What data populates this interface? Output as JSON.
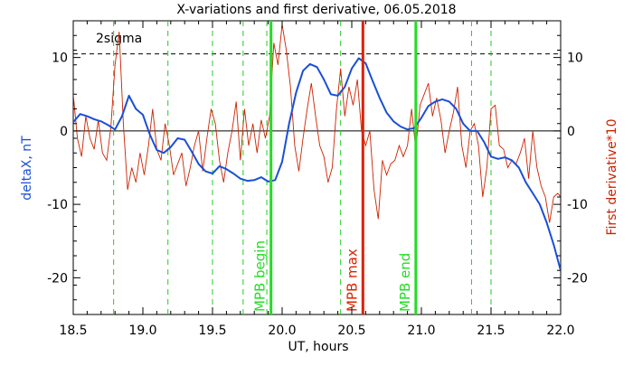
{
  "chart_data": {
    "type": "line",
    "title": "X-variations and first derivative, 06.05.2018",
    "xlabel": "UT, hours",
    "ylabel_left": "deltaX, nT",
    "ylabel_right": "First derivative*10",
    "xlim": [
      18.5,
      22.0
    ],
    "ylim": [
      -25,
      15
    ],
    "x_ticks": [
      18.5,
      19.0,
      19.5,
      20.0,
      20.5,
      21.0,
      21.5,
      22.0
    ],
    "x_tick_labels": [
      "18.5",
      "19.0",
      "19.5",
      "20.0",
      "20.5",
      "21.0",
      "21.5",
      "22.0"
    ],
    "y_ticks": [
      -20,
      -10,
      0,
      10
    ],
    "y_tick_labels": [
      "-20",
      "-10",
      "0",
      "10"
    ],
    "grid": false,
    "colors": {
      "deltaX": "#1a4fd6",
      "derivative": "#cc2200",
      "mpb_marker": "#22dd22",
      "max_marker": "#dd2200",
      "dashed_markers": "#22cc22",
      "sigma_line": "#000000",
      "zero_line": "#000000"
    },
    "sigma": {
      "label": "2sigma",
      "value": 10.5
    },
    "zero_line": 0,
    "dashed_markers_x": [
      18.79,
      19.18,
      19.5,
      19.72,
      19.89,
      20.42,
      21.36,
      21.5
    ],
    "markers": [
      {
        "label": "MPB begin",
        "x": 19.92,
        "kind": "mpb"
      },
      {
        "label": "MPB max",
        "x": 20.58,
        "kind": "max"
      },
      {
        "label": "MPB end",
        "x": 20.96,
        "kind": "mpb"
      }
    ],
    "series": [
      {
        "name": "deltaX",
        "axis": "left",
        "x": [
          18.5,
          18.55,
          18.6,
          18.65,
          18.7,
          18.75,
          18.8,
          18.85,
          18.9,
          18.95,
          19.0,
          19.05,
          19.1,
          19.15,
          19.2,
          19.25,
          19.3,
          19.35,
          19.4,
          19.45,
          19.5,
          19.55,
          19.6,
          19.65,
          19.7,
          19.75,
          19.8,
          19.85,
          19.9,
          19.95,
          20.0,
          20.05,
          20.1,
          20.15,
          20.2,
          20.25,
          20.3,
          20.35,
          20.4,
          20.45,
          20.5,
          20.55,
          20.6,
          20.65,
          20.7,
          20.75,
          20.8,
          20.85,
          20.9,
          20.95,
          21.0,
          21.05,
          21.1,
          21.15,
          21.2,
          21.25,
          21.3,
          21.35,
          21.4,
          21.45,
          21.5,
          21.55,
          21.6,
          21.65,
          21.7,
          21.75,
          21.8,
          21.85,
          21.9,
          21.95,
          22.0
        ],
        "values": [
          1.2,
          2.3,
          2.0,
          1.6,
          1.3,
          0.8,
          0.2,
          2.0,
          4.8,
          3.0,
          2.2,
          -0.5,
          -2.6,
          -3.0,
          -2.2,
          -1.0,
          -1.2,
          -2.8,
          -4.5,
          -5.5,
          -5.8,
          -4.8,
          -5.2,
          -5.8,
          -6.5,
          -6.8,
          -6.7,
          -6.3,
          -6.9,
          -6.7,
          -4.2,
          1.0,
          5.2,
          8.2,
          9.1,
          8.7,
          7.0,
          5.0,
          4.8,
          6.0,
          8.5,
          9.9,
          9.2,
          6.8,
          4.5,
          2.5,
          1.3,
          0.6,
          0.2,
          0.4,
          1.8,
          3.4,
          4.0,
          4.3,
          4.0,
          3.0,
          1.0,
          0.0,
          0.0,
          -1.5,
          -3.5,
          -3.8,
          -3.6,
          -4.0,
          -5.0,
          -7.0,
          -8.5,
          -10.0,
          -12.5,
          -15.5,
          -19.0
        ]
      },
      {
        "name": "First derivative*10",
        "axis": "right",
        "x": [
          18.5,
          18.53,
          18.56,
          18.59,
          18.62,
          18.65,
          18.68,
          18.71,
          18.74,
          18.77,
          18.8,
          18.83,
          18.86,
          18.89,
          18.92,
          18.95,
          18.98,
          19.01,
          19.04,
          19.07,
          19.1,
          19.13,
          19.16,
          19.19,
          19.22,
          19.25,
          19.28,
          19.31,
          19.34,
          19.37,
          19.4,
          19.43,
          19.46,
          19.49,
          19.52,
          19.55,
          19.58,
          19.61,
          19.64,
          19.67,
          19.7,
          19.73,
          19.76,
          19.79,
          19.82,
          19.85,
          19.88,
          19.91,
          19.94,
          19.97,
          20.0,
          20.03,
          20.06,
          20.09,
          20.12,
          20.15,
          20.18,
          20.21,
          20.24,
          20.27,
          20.3,
          20.33,
          20.36,
          20.39,
          20.42,
          20.45,
          20.48,
          20.51,
          20.54,
          20.57,
          20.6,
          20.63,
          20.66,
          20.69,
          20.72,
          20.75,
          20.78,
          20.81,
          20.84,
          20.87,
          20.9,
          20.93,
          20.96,
          20.99,
          21.02,
          21.05,
          21.08,
          21.11,
          21.14,
          21.17,
          21.2,
          21.23,
          21.26,
          21.29,
          21.32,
          21.35,
          21.38,
          21.41,
          21.44,
          21.47,
          21.5,
          21.53,
          21.56,
          21.59,
          21.62,
          21.65,
          21.68,
          21.71,
          21.74,
          21.77,
          21.8,
          21.83,
          21.86,
          21.89,
          21.92,
          21.95,
          21.98,
          22.0
        ],
        "values": [
          5.0,
          -1.0,
          -3.5,
          2.0,
          -1.0,
          -2.5,
          1.5,
          -3.0,
          -4.0,
          0.5,
          9.0,
          13.5,
          1.0,
          -8.0,
          -5.0,
          -7.0,
          -3.0,
          -6.0,
          -2.0,
          3.0,
          -2.5,
          -4.0,
          1.0,
          -2.0,
          -6.0,
          -4.5,
          -3.0,
          -7.5,
          -5.0,
          -2.0,
          0.0,
          -5.5,
          -1.0,
          3.0,
          1.0,
          -4.0,
          -7.0,
          -3.0,
          0.0,
          4.0,
          -4.0,
          3.0,
          -2.0,
          1.0,
          -3.0,
          1.5,
          -1.0,
          2.0,
          12.0,
          9.0,
          14.5,
          11.0,
          6.0,
          -2.0,
          -5.5,
          -1.0,
          3.0,
          6.5,
          2.0,
          -2.0,
          -3.5,
          -7.0,
          -5.0,
          3.0,
          8.5,
          2.0,
          6.0,
          3.5,
          7.0,
          0.0,
          -2.0,
          0.0,
          -8.0,
          -12.0,
          -4.0,
          -6.0,
          -4.5,
          -4.0,
          -2.0,
          -3.5,
          -2.0,
          3.0,
          -2.5,
          3.5,
          5.0,
          6.5,
          2.0,
          4.5,
          1.5,
          -3.0,
          0.0,
          2.5,
          6.0,
          -2.0,
          -5.0,
          0.0,
          1.0,
          -2.0,
          -9.0,
          -5.0,
          3.0,
          3.5,
          -2.0,
          -2.5,
          -5.0,
          -4.0,
          -4.5,
          -3.0,
          -1.0,
          -6.5,
          0.0,
          -5.0,
          -7.5,
          -9.0,
          -12.5,
          -9.0,
          -8.5,
          -9.0
        ]
      }
    ]
  }
}
